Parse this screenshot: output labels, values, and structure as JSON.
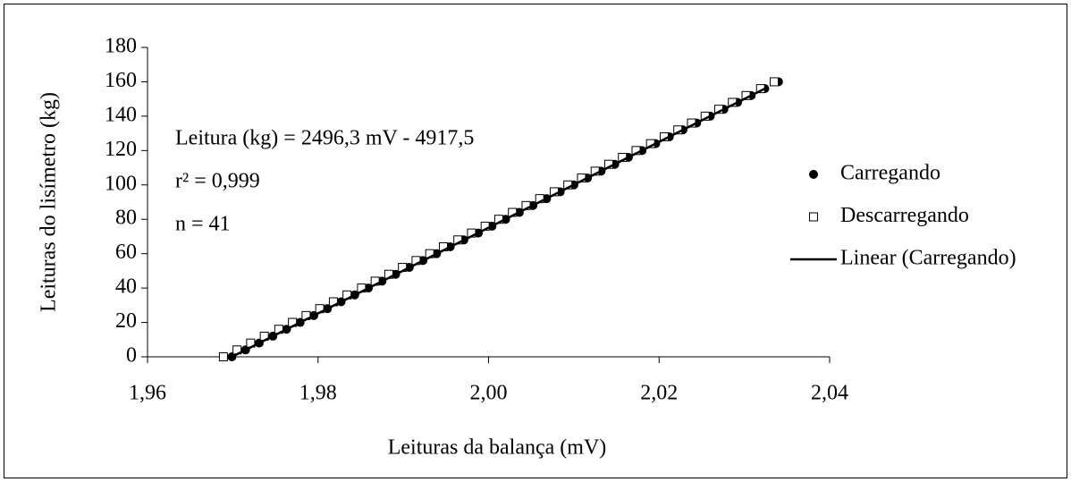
{
  "chart_data": {
    "type": "scatter",
    "xlabel": "Leituras da balança (mV)",
    "ylabel": "Leituras do lisímetro (kg)",
    "annotations": [
      "Leitura (kg) = 2496,3 mV - 4917,5",
      "r² = 0,999",
      "n = 41"
    ],
    "xlim": [
      1.96,
      2.04
    ],
    "ylim": [
      0,
      180
    ],
    "xticks": [
      {
        "value": 1.96,
        "label": "1,96"
      },
      {
        "value": 1.98,
        "label": "1,98"
      },
      {
        "value": 2.0,
        "label": "2,00"
      },
      {
        "value": 2.02,
        "label": "2,02"
      },
      {
        "value": 2.04,
        "label": "2,04"
      }
    ],
    "yticks": [
      0,
      20,
      40,
      60,
      80,
      100,
      120,
      140,
      160,
      180
    ],
    "grid": false,
    "legend": "right",
    "series": [
      {
        "name": "Carregando",
        "marker": "circle",
        "color": "#000000",
        "x": [
          1.9699,
          1.9715,
          1.9731,
          1.9747,
          1.9763,
          1.9779,
          1.9795,
          1.9811,
          1.9827,
          1.9843,
          1.9859,
          1.9875,
          1.9891,
          1.9907,
          1.9923,
          1.9939,
          1.9955,
          1.9971,
          1.9988,
          2.0004,
          2.002,
          2.0036,
          2.0052,
          2.0068,
          2.0084,
          2.01,
          2.0116,
          2.0132,
          2.0148,
          2.0164,
          2.018,
          2.0196,
          2.0212,
          2.0228,
          2.0244,
          2.026,
          2.0276,
          2.0292,
          2.0308,
          2.0324,
          2.034
        ],
        "values": [
          0,
          4,
          8,
          12,
          16,
          20,
          24,
          28,
          32,
          36,
          40,
          44,
          48,
          52,
          56,
          60,
          64,
          68,
          72,
          76,
          80,
          84,
          88,
          92,
          96,
          100,
          104,
          108,
          112,
          116,
          120,
          124,
          128,
          132,
          136,
          140,
          144,
          148,
          152,
          156,
          160
        ]
      },
      {
        "name": "Descarregando",
        "marker": "square",
        "color": "#000000",
        "x": [
          1.9689,
          1.9705,
          1.9721,
          1.9737,
          1.9754,
          1.977,
          1.9786,
          1.9802,
          1.9818,
          1.9834,
          1.9851,
          1.9867,
          1.9883,
          1.9899,
          1.9915,
          1.9931,
          1.9947,
          1.9964,
          1.998,
          1.9996,
          2.0012,
          2.0028,
          2.0044,
          2.006,
          2.0077,
          2.0093,
          2.0109,
          2.0125,
          2.0141,
          2.0157,
          2.0173,
          2.019,
          2.0206,
          2.0222,
          2.0238,
          2.0254,
          2.027,
          2.0286,
          2.0302,
          2.0319,
          2.0335
        ],
        "values": [
          0,
          4,
          8,
          12,
          16,
          20,
          24,
          28,
          32,
          36,
          40,
          44,
          48,
          52,
          56,
          60,
          64,
          68,
          72,
          76,
          80,
          84,
          88,
          92,
          96,
          100,
          104,
          108,
          112,
          116,
          120,
          124,
          128,
          132,
          136,
          140,
          144,
          148,
          152,
          156,
          160
        ]
      },
      {
        "name": "Linear (Carregando)",
        "marker": "line",
        "color": "#000000",
        "x": [
          1.9699,
          2.0324
        ],
        "values": [
          0,
          156
        ]
      }
    ]
  }
}
